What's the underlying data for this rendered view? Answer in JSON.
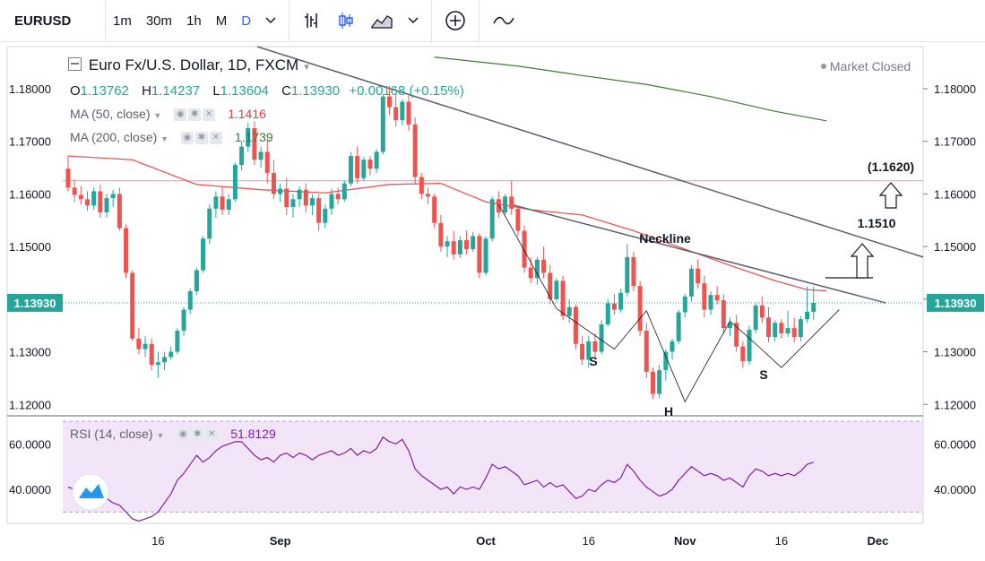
{
  "toolbar": {
    "symbol": "EURUSD",
    "timeframes": [
      "1m",
      "30m",
      "1h",
      "M",
      "D"
    ],
    "active_timeframe": "D",
    "icons": [
      "chevron-down-icon",
      "bar-style-icon",
      "candle-style-icon",
      "indicators-icon",
      "compare-icon",
      "wave-icon"
    ]
  },
  "legend": {
    "title": "Euro Fx/U.S. Dollar, 1D, FXCM",
    "market_status": "Market Closed",
    "ohlc": {
      "o_label": "O",
      "o": "1.13762",
      "h_label": "H",
      "h": "1.14237",
      "l_label": "L",
      "l": "1.13604",
      "c_label": "C",
      "c": "1.13930",
      "change": "+0.00168 (+0.15%)"
    },
    "ma50_label": "MA (50, close)",
    "ma50_value": "1.1416",
    "ma200_label": "MA (200, close)",
    "ma200_value": "1.1739",
    "rsi_label": "RSI (14, close)",
    "rsi_value": "51.8129"
  },
  "colors": {
    "up": "#26a69a",
    "down": "#ef5350",
    "ma50": "#ef5350",
    "ma200": "#3a7d2c",
    "rsi": "#7b1fa2",
    "rsi_band": "#f3e5f8",
    "price_tag": "#26a69a"
  },
  "chart_data": {
    "type": "candlestick",
    "price_axis": {
      "min": 1.118,
      "max": 1.188,
      "ticks": [
        "1.18000",
        "1.17000",
        "1.16000",
        "1.15000",
        "1.14000",
        "1.13000",
        "1.12000"
      ]
    },
    "x_axis": {
      "labels": [
        "16",
        "Sep",
        "Oct",
        "16",
        "Nov",
        "16",
        "Dec"
      ],
      "label_index": [
        14,
        33,
        65,
        81,
        96,
        111,
        126
      ]
    },
    "last_price": "1.13930",
    "last_price_value": 1.1393,
    "candles": [
      [
        1.1648,
        1.1672,
        1.1605,
        1.1612
      ],
      [
        1.1612,
        1.1628,
        1.1585,
        1.1598
      ],
      [
        1.1598,
        1.1615,
        1.158,
        1.159
      ],
      [
        1.159,
        1.1605,
        1.1568,
        1.1578
      ],
      [
        1.1578,
        1.1612,
        1.157,
        1.1605
      ],
      [
        1.1605,
        1.1618,
        1.1555,
        1.1565
      ],
      [
        1.1565,
        1.16,
        1.1555,
        1.1592
      ],
      [
        1.1592,
        1.1608,
        1.1575,
        1.16
      ],
      [
        1.16,
        1.1612,
        1.153,
        1.1535
      ],
      [
        1.1535,
        1.1542,
        1.144,
        1.145
      ],
      [
        1.145,
        1.1455,
        1.132,
        1.1325
      ],
      [
        1.1325,
        1.1345,
        1.1295,
        1.1305
      ],
      [
        1.1305,
        1.133,
        1.129,
        1.1315
      ],
      [
        1.1315,
        1.1325,
        1.1265,
        1.1275
      ],
      [
        1.1275,
        1.13,
        1.125,
        1.128
      ],
      [
        1.128,
        1.13,
        1.1265,
        1.129
      ],
      [
        1.129,
        1.131,
        1.1285,
        1.13
      ],
      [
        1.13,
        1.1345,
        1.1295,
        1.134
      ],
      [
        1.134,
        1.1385,
        1.133,
        1.138
      ],
      [
        1.138,
        1.142,
        1.1372,
        1.1415
      ],
      [
        1.1415,
        1.146,
        1.1408,
        1.1455
      ],
      [
        1.1455,
        1.152,
        1.145,
        1.1515
      ],
      [
        1.1515,
        1.158,
        1.1505,
        1.1572
      ],
      [
        1.1572,
        1.1605,
        1.1555,
        1.1595
      ],
      [
        1.1595,
        1.1615,
        1.156,
        1.157
      ],
      [
        1.157,
        1.16,
        1.156,
        1.159
      ],
      [
        1.159,
        1.166,
        1.1585,
        1.1655
      ],
      [
        1.1655,
        1.17,
        1.1645,
        1.169
      ],
      [
        1.169,
        1.1735,
        1.168,
        1.1725
      ],
      [
        1.1725,
        1.1738,
        1.1655,
        1.1665
      ],
      [
        1.1665,
        1.169,
        1.165,
        1.168
      ],
      [
        1.168,
        1.1705,
        1.162,
        1.164
      ],
      [
        1.164,
        1.1665,
        1.159,
        1.16
      ],
      [
        1.16,
        1.162,
        1.1585,
        1.161
      ],
      [
        1.161,
        1.163,
        1.156,
        1.1575
      ],
      [
        1.1575,
        1.16,
        1.1555,
        1.159
      ],
      [
        1.159,
        1.1615,
        1.1575,
        1.1608
      ],
      [
        1.1608,
        1.162,
        1.1565,
        1.1578
      ],
      [
        1.1578,
        1.16,
        1.156,
        1.1592
      ],
      [
        1.1592,
        1.16,
        1.153,
        1.1545
      ],
      [
        1.1545,
        1.158,
        1.1535,
        1.1572
      ],
      [
        1.1572,
        1.161,
        1.156,
        1.16
      ],
      [
        1.16,
        1.1612,
        1.158,
        1.159
      ],
      [
        1.159,
        1.1625,
        1.1585,
        1.162
      ],
      [
        1.162,
        1.168,
        1.1615,
        1.1672
      ],
      [
        1.1672,
        1.169,
        1.162,
        1.163
      ],
      [
        1.163,
        1.167,
        1.1625,
        1.1665
      ],
      [
        1.1665,
        1.1672,
        1.1635,
        1.1648
      ],
      [
        1.1648,
        1.1685,
        1.164,
        1.168
      ],
      [
        1.168,
        1.179,
        1.1675,
        1.1785
      ],
      [
        1.1785,
        1.1805,
        1.175,
        1.1765
      ],
      [
        1.1765,
        1.179,
        1.1728,
        1.174
      ],
      [
        1.174,
        1.178,
        1.173,
        1.1775
      ],
      [
        1.1775,
        1.179,
        1.172,
        1.1732
      ],
      [
        1.1732,
        1.1745,
        1.162,
        1.1632
      ],
      [
        1.1632,
        1.164,
        1.159,
        1.16
      ],
      [
        1.16,
        1.1612,
        1.158,
        1.1595
      ],
      [
        1.1595,
        1.16,
        1.1535,
        1.1545
      ],
      [
        1.1545,
        1.156,
        1.149,
        1.15
      ],
      [
        1.15,
        1.152,
        1.148,
        1.151
      ],
      [
        1.151,
        1.153,
        1.1475,
        1.1485
      ],
      [
        1.1485,
        1.152,
        1.1478,
        1.1512
      ],
      [
        1.1512,
        1.153,
        1.1485,
        1.1495
      ],
      [
        1.1495,
        1.1528,
        1.149,
        1.152
      ],
      [
        1.152,
        1.1525,
        1.144,
        1.145
      ],
      [
        1.145,
        1.152,
        1.1445,
        1.1515
      ],
      [
        1.1515,
        1.1595,
        1.151,
        1.159
      ],
      [
        1.159,
        1.1605,
        1.1555,
        1.1565
      ],
      [
        1.1565,
        1.16,
        1.156,
        1.1595
      ],
      [
        1.1595,
        1.1625,
        1.156,
        1.1572
      ],
      [
        1.1572,
        1.1578,
        1.152,
        1.153
      ],
      [
        1.153,
        1.154,
        1.145,
        1.146
      ],
      [
        1.146,
        1.148,
        1.143,
        1.144
      ],
      [
        1.144,
        1.148,
        1.1428,
        1.1475
      ],
      [
        1.1475,
        1.15,
        1.144,
        1.145
      ],
      [
        1.145,
        1.1465,
        1.139,
        1.14
      ],
      [
        1.14,
        1.144,
        1.1395,
        1.1435
      ],
      [
        1.1435,
        1.1445,
        1.136,
        1.1368
      ],
      [
        1.1368,
        1.14,
        1.1355,
        1.1385
      ],
      [
        1.1385,
        1.139,
        1.1305,
        1.1315
      ],
      [
        1.1315,
        1.133,
        1.1275,
        1.1285
      ],
      [
        1.1285,
        1.133,
        1.127,
        1.132
      ],
      [
        1.132,
        1.1335,
        1.129,
        1.13
      ],
      [
        1.13,
        1.136,
        1.1295,
        1.1352
      ],
      [
        1.1352,
        1.14,
        1.1348,
        1.1392
      ],
      [
        1.1392,
        1.141,
        1.137,
        1.138
      ],
      [
        1.138,
        1.142,
        1.1375,
        1.1412
      ],
      [
        1.1412,
        1.1505,
        1.1405,
        1.148
      ],
      [
        1.148,
        1.149,
        1.1415,
        1.1425
      ],
      [
        1.1425,
        1.1435,
        1.133,
        1.134
      ],
      [
        1.134,
        1.1355,
        1.125,
        1.1262
      ],
      [
        1.1262,
        1.127,
        1.121,
        1.122
      ],
      [
        1.122,
        1.1275,
        1.1212,
        1.1265
      ],
      [
        1.1265,
        1.1305,
        1.1245,
        1.13
      ],
      [
        1.13,
        1.1325,
        1.1285,
        1.132
      ],
      [
        1.132,
        1.138,
        1.1315,
        1.1375
      ],
      [
        1.1375,
        1.141,
        1.1365,
        1.1405
      ],
      [
        1.1405,
        1.1465,
        1.1395,
        1.1458
      ],
      [
        1.1458,
        1.1475,
        1.142,
        1.143
      ],
      [
        1.143,
        1.1445,
        1.1365,
        1.138
      ],
      [
        1.138,
        1.1415,
        1.137,
        1.1408
      ],
      [
        1.1408,
        1.1425,
        1.139,
        1.1398
      ],
      [
        1.1398,
        1.141,
        1.1335,
        1.1345
      ],
      [
        1.1345,
        1.1365,
        1.133,
        1.1355
      ],
      [
        1.1355,
        1.137,
        1.13,
        1.131
      ],
      [
        1.131,
        1.132,
        1.127,
        1.1282
      ],
      [
        1.1282,
        1.135,
        1.1275,
        1.1342
      ],
      [
        1.1342,
        1.1392,
        1.1335,
        1.1388
      ],
      [
        1.1388,
        1.1405,
        1.1355,
        1.1365
      ],
      [
        1.1365,
        1.1385,
        1.1318,
        1.1328
      ],
      [
        1.1328,
        1.136,
        1.132,
        1.1355
      ],
      [
        1.1355,
        1.1362,
        1.1325,
        1.1335
      ],
      [
        1.1335,
        1.1378,
        1.1328,
        1.1345
      ],
      [
        1.1345,
        1.1365,
        1.1318,
        1.1328
      ],
      [
        1.1328,
        1.1368,
        1.132,
        1.1362
      ],
      [
        1.1362,
        1.1424,
        1.1355,
        1.1376
      ],
      [
        1.1376,
        1.1424,
        1.136,
        1.1393
      ]
    ],
    "ma50": [
      [
        0,
        1.1672
      ],
      [
        10,
        1.1665
      ],
      [
        20,
        1.1618
      ],
      [
        30,
        1.1608
      ],
      [
        40,
        1.1602
      ],
      [
        50,
        1.1618
      ],
      [
        58,
        1.162
      ],
      [
        65,
        1.1585
      ],
      [
        72,
        1.157
      ],
      [
        80,
        1.156
      ],
      [
        88,
        1.153
      ],
      [
        96,
        1.1495
      ],
      [
        104,
        1.146
      ],
      [
        110,
        1.1435
      ],
      [
        115,
        1.1418
      ],
      [
        118,
        1.1416
      ]
    ],
    "ma200": [
      [
        57,
        1.186
      ],
      [
        70,
        1.1843
      ],
      [
        80,
        1.1825
      ],
      [
        90,
        1.1808
      ],
      [
        100,
        1.1785
      ],
      [
        110,
        1.1757
      ],
      [
        118,
        1.1739
      ]
    ],
    "rsi": {
      "min": 25,
      "max": 72,
      "ticks": [
        "60.0000",
        "40.0000"
      ],
      "band": [
        30,
        70
      ],
      "values": [
        41,
        40,
        39,
        40,
        41,
        35,
        36,
        34,
        33,
        30,
        27,
        26,
        27,
        28,
        30,
        34,
        38,
        44,
        47,
        51,
        55,
        52,
        54,
        57,
        59,
        60,
        61,
        61,
        58,
        55,
        53,
        54,
        52,
        55,
        56,
        54,
        56,
        55,
        53,
        55,
        56,
        57,
        55,
        56,
        58,
        55,
        57,
        56,
        58,
        63,
        61,
        60,
        62,
        57,
        49,
        46,
        44,
        42,
        40,
        41,
        38,
        41,
        40,
        41,
        40,
        45,
        51,
        49,
        50,
        48,
        46,
        42,
        43,
        44,
        41,
        43,
        41,
        42,
        39,
        36,
        37,
        40,
        39,
        42,
        44,
        43,
        45,
        51,
        48,
        44,
        41,
        39,
        37,
        38,
        40,
        44,
        47,
        50,
        48,
        46,
        47,
        46,
        44,
        45,
        43,
        41,
        46,
        49,
        48,
        46,
        47,
        46,
        47,
        46,
        48,
        51,
        52
      ]
    },
    "rsi_axis_ticks": [
      "60.0000",
      "40.0000"
    ]
  },
  "annotations": {
    "neckline": "Neckline",
    "target1": "1.1510",
    "target2": "(1.1620)",
    "left_shoulder": "S",
    "head": "H",
    "right_shoulder": "S"
  }
}
